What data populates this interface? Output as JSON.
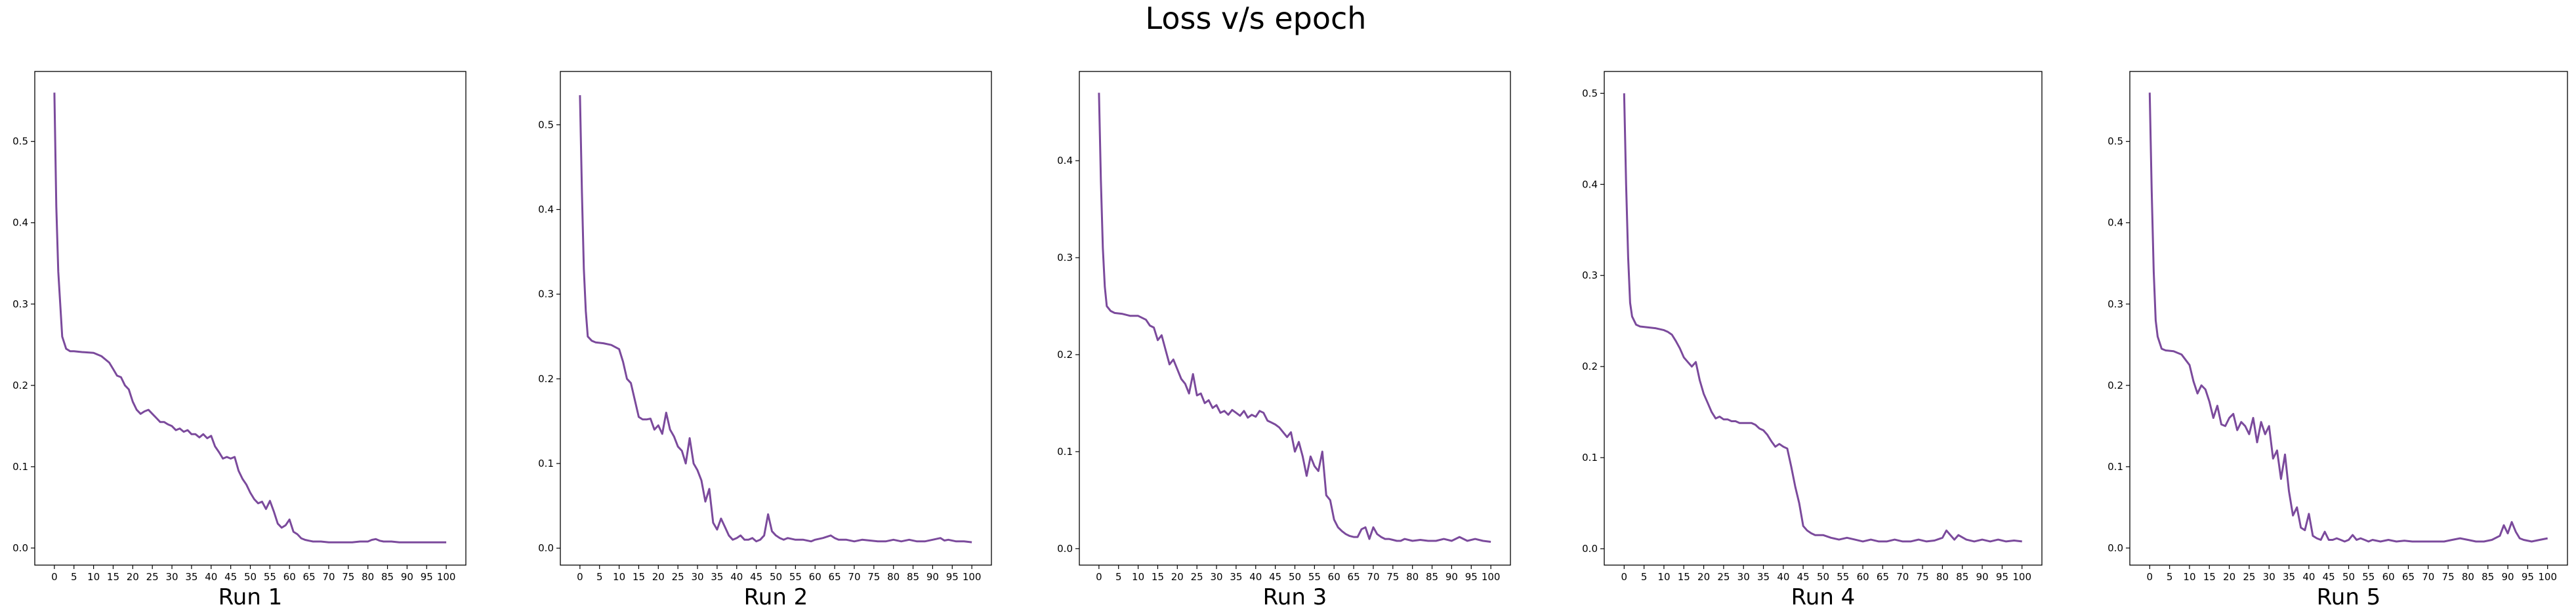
{
  "figure": {
    "title": "Loss v/s epoch"
  },
  "chart_data": [
    {
      "type": "line",
      "xlabel": "Run 1",
      "ylabel": "",
      "xlim": [
        -5,
        105
      ],
      "ylim": [
        -0.021,
        0.586
      ],
      "xticks": [
        0,
        5,
        10,
        15,
        20,
        25,
        30,
        35,
        40,
        45,
        50,
        55,
        60,
        65,
        70,
        75,
        80,
        85,
        90,
        95,
        100
      ],
      "yticks": [
        0.0,
        0.1,
        0.2,
        0.3,
        0.4,
        0.5
      ],
      "line_color": "#7b4a9c",
      "series": [
        {
          "x": [
            0,
            0.5,
            1,
            1.5,
            2,
            3,
            4,
            5,
            7,
            10,
            12,
            14,
            15,
            16,
            17,
            18,
            19,
            20,
            21,
            22,
            23,
            24,
            25,
            26,
            27,
            28,
            29,
            30,
            31,
            32,
            33,
            34,
            35,
            36,
            37,
            38,
            39,
            40,
            41,
            42,
            43,
            44,
            45,
            46,
            47,
            48,
            49,
            50,
            51,
            52,
            53,
            54,
            55,
            56,
            57,
            58,
            59,
            60,
            61,
            62,
            63,
            64,
            65,
            66,
            68,
            70,
            72,
            74,
            76,
            78,
            80,
            81,
            82,
            83,
            84,
            86,
            88,
            90,
            92,
            94,
            96,
            98,
            100
          ],
          "y": [
            0.56,
            0.42,
            0.34,
            0.3,
            0.26,
            0.245,
            0.242,
            0.242,
            0.241,
            0.24,
            0.236,
            0.228,
            0.22,
            0.212,
            0.21,
            0.2,
            0.195,
            0.18,
            0.17,
            0.165,
            0.168,
            0.17,
            0.165,
            0.16,
            0.155,
            0.155,
            0.152,
            0.15,
            0.145,
            0.147,
            0.143,
            0.145,
            0.14,
            0.14,
            0.136,
            0.14,
            0.135,
            0.138,
            0.125,
            0.118,
            0.11,
            0.112,
            0.11,
            0.112,
            0.095,
            0.085,
            0.078,
            0.068,
            0.06,
            0.055,
            0.057,
            0.048,
            0.058,
            0.045,
            0.03,
            0.025,
            0.028,
            0.035,
            0.02,
            0.017,
            0.012,
            0.01,
            0.009,
            0.008,
            0.008,
            0.007,
            0.007,
            0.007,
            0.007,
            0.008,
            0.008,
            0.01,
            0.011,
            0.009,
            0.008,
            0.008,
            0.007,
            0.007,
            0.007,
            0.007,
            0.007,
            0.007,
            0.007
          ]
        }
      ]
    },
    {
      "type": "line",
      "xlabel": "Run 2",
      "ylabel": "",
      "xlim": [
        -5,
        105
      ],
      "ylim": [
        -0.02,
        0.563
      ],
      "xticks": [
        0,
        5,
        10,
        15,
        20,
        25,
        30,
        35,
        40,
        45,
        50,
        55,
        60,
        65,
        70,
        75,
        80,
        85,
        90,
        95,
        100
      ],
      "yticks": [
        0.0,
        0.1,
        0.2,
        0.3,
        0.4,
        0.5
      ],
      "line_color": "#7b4a9c",
      "series": [
        {
          "x": [
            0,
            0.5,
            1,
            1.5,
            2,
            3,
            4,
            6,
            8,
            10,
            11,
            12,
            13,
            14,
            15,
            16,
            17,
            18,
            19,
            20,
            21,
            22,
            23,
            24,
            25,
            26,
            27,
            28,
            29,
            30,
            31,
            32,
            33,
            34,
            35,
            36,
            37,
            38,
            39,
            40,
            41,
            42,
            43,
            44,
            45,
            46,
            47,
            48,
            49,
            50,
            51,
            52,
            53,
            55,
            57,
            59,
            60,
            62,
            64,
            65,
            66,
            68,
            70,
            72,
            74,
            76,
            78,
            80,
            82,
            84,
            86,
            88,
            90,
            92,
            93,
            94,
            96,
            98,
            100
          ],
          "y": [
            0.535,
            0.42,
            0.33,
            0.28,
            0.25,
            0.245,
            0.243,
            0.242,
            0.24,
            0.235,
            0.22,
            0.2,
            0.195,
            0.175,
            0.155,
            0.152,
            0.152,
            0.153,
            0.14,
            0.145,
            0.135,
            0.16,
            0.14,
            0.132,
            0.12,
            0.115,
            0.1,
            0.13,
            0.1,
            0.092,
            0.08,
            0.055,
            0.07,
            0.03,
            0.022,
            0.035,
            0.025,
            0.015,
            0.01,
            0.012,
            0.015,
            0.01,
            0.01,
            0.012,
            0.008,
            0.01,
            0.015,
            0.04,
            0.02,
            0.015,
            0.012,
            0.01,
            0.012,
            0.01,
            0.01,
            0.008,
            0.01,
            0.012,
            0.015,
            0.012,
            0.01,
            0.01,
            0.008,
            0.01,
            0.009,
            0.008,
            0.008,
            0.01,
            0.008,
            0.01,
            0.008,
            0.008,
            0.01,
            0.012,
            0.009,
            0.01,
            0.008,
            0.008,
            0.007
          ]
        }
      ]
    },
    {
      "type": "line",
      "xlabel": "Run 3",
      "ylabel": "",
      "xlim": [
        -5,
        105
      ],
      "ylim": [
        -0.017,
        0.492
      ],
      "xticks": [
        0,
        5,
        10,
        15,
        20,
        25,
        30,
        35,
        40,
        45,
        50,
        55,
        60,
        65,
        70,
        75,
        80,
        85,
        90,
        95,
        100
      ],
      "yticks": [
        0.0,
        0.1,
        0.2,
        0.3,
        0.4
      ],
      "line_color": "#7b4a9c",
      "series": [
        {
          "x": [
            0,
            0.5,
            1,
            1.5,
            2,
            3,
            4,
            6,
            8,
            10,
            12,
            13,
            14,
            15,
            16,
            17,
            18,
            19,
            20,
            21,
            22,
            23,
            24,
            25,
            26,
            27,
            28,
            29,
            30,
            31,
            32,
            33,
            34,
            35,
            36,
            37,
            38,
            39,
            40,
            41,
            42,
            43,
            44,
            45,
            46,
            47,
            48,
            49,
            50,
            51,
            52,
            53,
            54,
            55,
            56,
            57,
            58,
            59,
            60,
            61,
            62,
            63,
            64,
            65,
            66,
            67,
            68,
            69,
            70,
            71,
            72,
            73,
            74,
            75,
            76,
            77,
            78,
            80,
            82,
            84,
            86,
            88,
            90,
            92,
            94,
            96,
            98,
            100
          ],
          "y": [
            0.47,
            0.38,
            0.31,
            0.27,
            0.25,
            0.245,
            0.243,
            0.242,
            0.24,
            0.24,
            0.236,
            0.23,
            0.228,
            0.215,
            0.22,
            0.205,
            0.19,
            0.195,
            0.185,
            0.175,
            0.17,
            0.16,
            0.18,
            0.158,
            0.16,
            0.15,
            0.153,
            0.145,
            0.148,
            0.14,
            0.142,
            0.138,
            0.143,
            0.14,
            0.137,
            0.142,
            0.135,
            0.138,
            0.136,
            0.142,
            0.14,
            0.132,
            0.13,
            0.128,
            0.125,
            0.12,
            0.115,
            0.12,
            0.1,
            0.11,
            0.095,
            0.075,
            0.095,
            0.085,
            0.08,
            0.1,
            0.055,
            0.05,
            0.03,
            0.022,
            0.018,
            0.015,
            0.013,
            0.012,
            0.012,
            0.02,
            0.022,
            0.01,
            0.022,
            0.015,
            0.012,
            0.01,
            0.01,
            0.009,
            0.008,
            0.008,
            0.01,
            0.008,
            0.009,
            0.008,
            0.008,
            0.01,
            0.008,
            0.012,
            0.008,
            0.01,
            0.008,
            0.007
          ]
        }
      ]
    },
    {
      "type": "line",
      "xlabel": "Run 4",
      "ylabel": "",
      "xlim": [
        -5,
        105
      ],
      "ylim": [
        -0.018,
        0.524
      ],
      "xticks": [
        0,
        5,
        10,
        15,
        20,
        25,
        30,
        35,
        40,
        45,
        50,
        55,
        60,
        65,
        70,
        75,
        80,
        85,
        90,
        95,
        100
      ],
      "yticks": [
        0.0,
        0.1,
        0.2,
        0.3,
        0.4,
        0.5
      ],
      "line_color": "#7b4a9c",
      "series": [
        {
          "x": [
            0,
            0.5,
            1,
            1.5,
            2,
            3,
            4,
            6,
            8,
            10,
            11,
            12,
            13,
            14,
            15,
            16,
            17,
            18,
            19,
            20,
            21,
            22,
            23,
            24,
            25,
            26,
            27,
            28,
            29,
            30,
            31,
            32,
            33,
            34,
            35,
            36,
            37,
            38,
            39,
            40,
            41,
            42,
            43,
            44,
            45,
            46,
            47,
            48,
            50,
            52,
            54,
            56,
            58,
            60,
            62,
            64,
            66,
            68,
            70,
            72,
            74,
            76,
            78,
            80,
            81,
            82,
            83,
            84,
            86,
            88,
            90,
            92,
            94,
            96,
            98,
            100
          ],
          "y": [
            0.5,
            0.4,
            0.32,
            0.27,
            0.255,
            0.246,
            0.244,
            0.243,
            0.242,
            0.24,
            0.238,
            0.235,
            0.228,
            0.22,
            0.21,
            0.205,
            0.2,
            0.205,
            0.185,
            0.17,
            0.16,
            0.15,
            0.143,
            0.145,
            0.142,
            0.142,
            0.14,
            0.14,
            0.138,
            0.138,
            0.138,
            0.138,
            0.136,
            0.132,
            0.13,
            0.125,
            0.118,
            0.112,
            0.115,
            0.112,
            0.11,
            0.09,
            0.068,
            0.05,
            0.025,
            0.02,
            0.017,
            0.015,
            0.015,
            0.012,
            0.01,
            0.012,
            0.01,
            0.008,
            0.01,
            0.008,
            0.008,
            0.01,
            0.008,
            0.008,
            0.01,
            0.008,
            0.009,
            0.012,
            0.02,
            0.015,
            0.01,
            0.015,
            0.01,
            0.008,
            0.01,
            0.008,
            0.01,
            0.008,
            0.009,
            0.008
          ]
        }
      ]
    },
    {
      "type": "line",
      "xlabel": "Run 5",
      "ylabel": "",
      "xlim": [
        -5,
        105
      ],
      "ylim": [
        -0.021,
        0.586
      ],
      "xticks": [
        0,
        5,
        10,
        15,
        20,
        25,
        30,
        35,
        40,
        45,
        50,
        55,
        60,
        65,
        70,
        75,
        80,
        85,
        90,
        95,
        100
      ],
      "yticks": [
        0.0,
        0.1,
        0.2,
        0.3,
        0.4,
        0.5
      ],
      "line_color": "#7b4a9c",
      "series": [
        {
          "x": [
            0,
            0.5,
            1,
            1.5,
            2,
            3,
            4,
            6,
            8,
            10,
            11,
            12,
            13,
            14,
            15,
            16,
            17,
            18,
            19,
            20,
            21,
            22,
            23,
            24,
            25,
            26,
            27,
            28,
            29,
            30,
            31,
            32,
            33,
            34,
            35,
            36,
            37,
            38,
            39,
            40,
            41,
            42,
            43,
            44,
            45,
            46,
            47,
            48,
            49,
            50,
            51,
            52,
            53,
            54,
            55,
            56,
            58,
            60,
            62,
            64,
            66,
            68,
            70,
            72,
            74,
            76,
            78,
            80,
            82,
            84,
            86,
            88,
            89,
            90,
            91,
            92,
            93,
            94,
            96,
            98,
            100
          ],
          "y": [
            0.56,
            0.44,
            0.34,
            0.28,
            0.26,
            0.245,
            0.243,
            0.242,
            0.238,
            0.225,
            0.205,
            0.19,
            0.2,
            0.195,
            0.18,
            0.16,
            0.175,
            0.152,
            0.15,
            0.16,
            0.165,
            0.145,
            0.155,
            0.15,
            0.14,
            0.16,
            0.13,
            0.155,
            0.14,
            0.15,
            0.11,
            0.12,
            0.085,
            0.115,
            0.07,
            0.04,
            0.05,
            0.025,
            0.022,
            0.042,
            0.015,
            0.012,
            0.01,
            0.02,
            0.01,
            0.01,
            0.012,
            0.01,
            0.008,
            0.01,
            0.016,
            0.01,
            0.012,
            0.01,
            0.008,
            0.01,
            0.008,
            0.01,
            0.008,
            0.009,
            0.008,
            0.008,
            0.008,
            0.008,
            0.008,
            0.01,
            0.012,
            0.01,
            0.008,
            0.008,
            0.01,
            0.015,
            0.028,
            0.018,
            0.032,
            0.02,
            0.012,
            0.01,
            0.008,
            0.01,
            0.012
          ]
        }
      ]
    }
  ]
}
